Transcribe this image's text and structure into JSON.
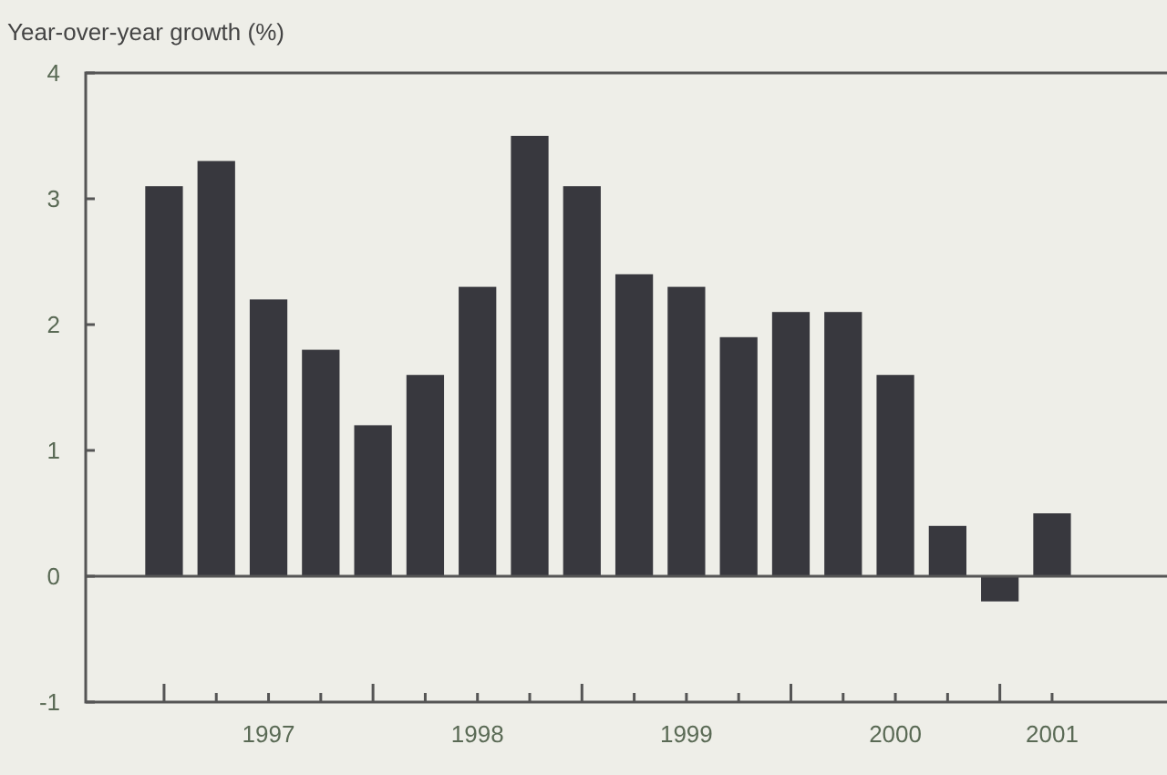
{
  "chart_data": {
    "type": "bar",
    "ylabel": "Year-over-year growth (%)",
    "color": "#38383e",
    "x": [
      1997,
      1997.25,
      1997.5,
      1997.75,
      1998,
      1998.25,
      1998.5,
      1998.75,
      1999,
      1999.25,
      1999.5,
      1999.75,
      2000,
      2000.25,
      2000.5,
      2000.75,
      2001,
      2001.25
    ],
    "values": [
      3.1,
      3.3,
      2.2,
      1.8,
      1.2,
      1.6,
      2.3,
      3.5,
      3.1,
      2.4,
      2.3,
      1.9,
      2.1,
      2.1,
      1.6,
      0.4,
      -0.2,
      0.5
    ],
    "xlim": [
      1996.625,
      2001.8
    ],
    "xticks": [
      {
        "value": 1997,
        "label": null
      },
      {
        "value": 1997.25,
        "label": null
      },
      {
        "value": 1997.5,
        "label": "1997"
      },
      {
        "value": 1997.75,
        "label": null
      },
      {
        "value": 1998,
        "label": null
      },
      {
        "value": 1998.25,
        "label": null
      },
      {
        "value": 1998.5,
        "label": "1998"
      },
      {
        "value": 1998.75,
        "label": null
      },
      {
        "value": 1999,
        "label": null
      },
      {
        "value": 1999.25,
        "label": null
      },
      {
        "value": 1999.5,
        "label": "1999"
      },
      {
        "value": 1999.75,
        "label": null
      },
      {
        "value": 2000,
        "label": null
      },
      {
        "value": 2000.25,
        "label": null
      },
      {
        "value": 2000.5,
        "label": "2000"
      },
      {
        "value": 2000.75,
        "label": null
      },
      {
        "value": 2001,
        "label": null
      },
      {
        "value": 2001.25,
        "label": "2001"
      }
    ],
    "ylim": [
      -1,
      4
    ],
    "yticks": [
      -1,
      0,
      1,
      2,
      3,
      4
    ],
    "ref_lines": [
      {
        "axis": "y",
        "value": 0
      }
    ],
    "grid": false
  }
}
